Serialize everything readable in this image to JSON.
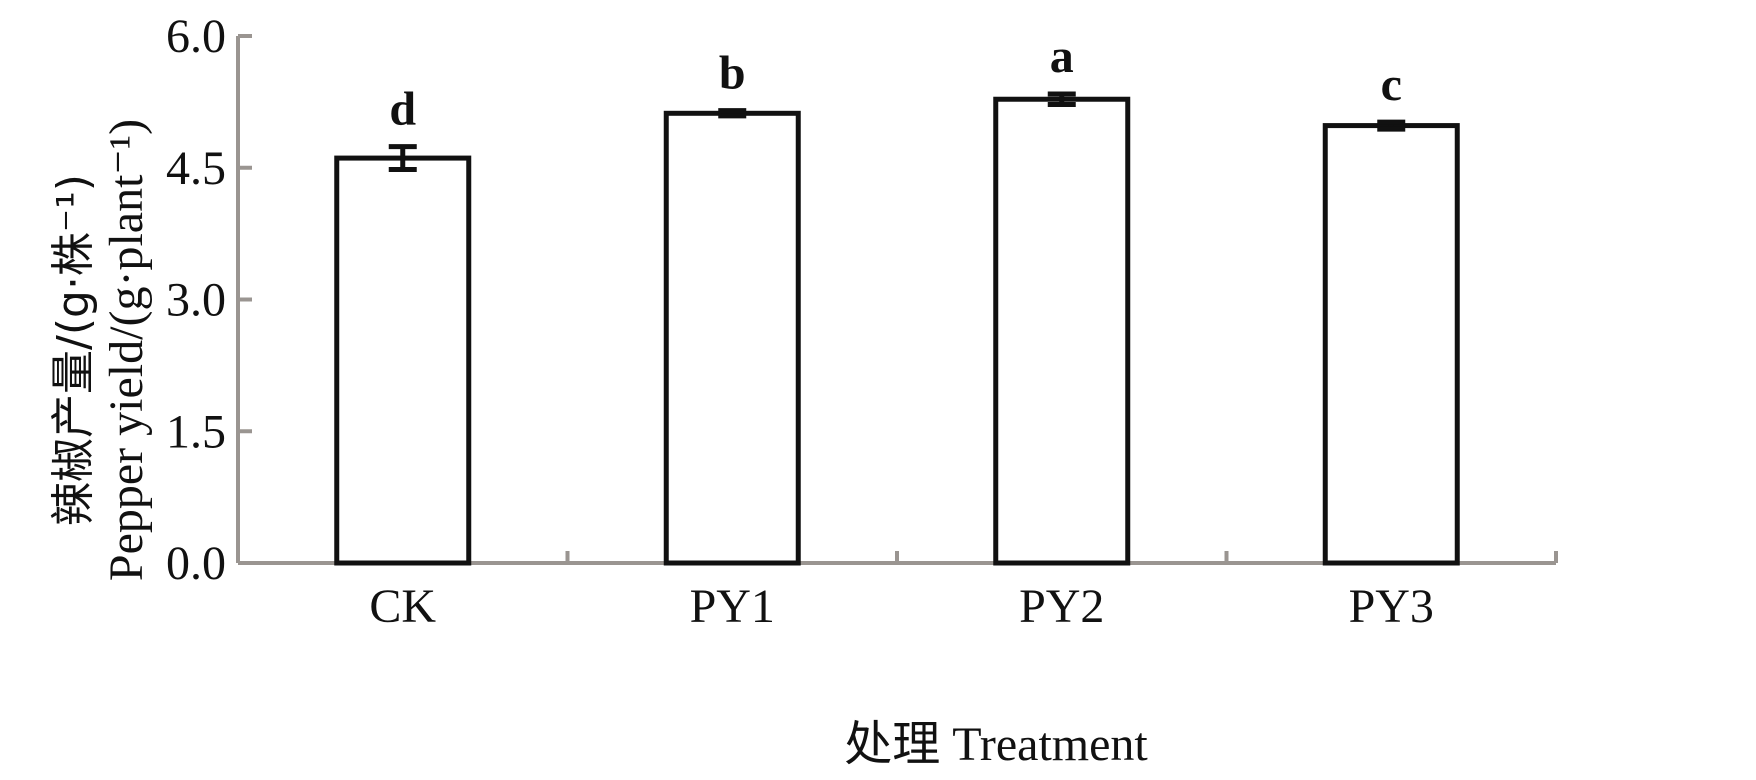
{
  "chart_data": {
    "type": "bar",
    "categories": [
      "CK",
      "PY1",
      "PY2",
      "PY3"
    ],
    "values": [
      4.61,
      5.12,
      5.28,
      4.98
    ],
    "errors": [
      0.13,
      0.03,
      0.06,
      0.04
    ],
    "significance": [
      "d",
      "b",
      "a",
      "c"
    ],
    "xlabel": "处理 Treatment",
    "ylabel_cn": "辣椒产量/(g·株⁻¹)",
    "ylabel_en": "Pepper yield/(g·plant⁻¹)",
    "ylim": [
      0,
      6
    ],
    "yticks": [
      "0.0",
      "1.5",
      "3.0",
      "4.5",
      "6.0"
    ],
    "ytick_values": [
      0,
      1.5,
      3.0,
      4.5,
      6.0
    ],
    "colors": {
      "axis": "#9a9591",
      "bar_edge": "#111111",
      "bar_fill": "#ffffff"
    }
  }
}
